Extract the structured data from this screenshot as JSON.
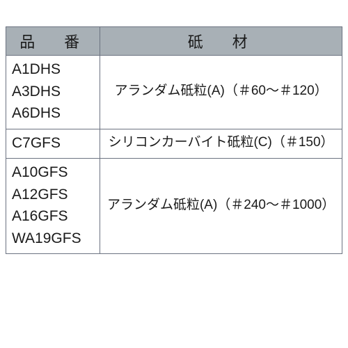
{
  "table": {
    "header_bg": "#a8b0b6",
    "border_color": "#6b7280",
    "text_color": "#1a1a1a",
    "columns": [
      {
        "key": "code",
        "label": "品　番",
        "width_pct": 28
      },
      {
        "key": "material",
        "label": "砥　材",
        "width_pct": 72
      }
    ],
    "rows": [
      {
        "codes": [
          "A1DHS",
          "A3DHS",
          "A6DHS"
        ],
        "material": "アランダム砥粒(A)（＃60～＃120）"
      },
      {
        "codes": [
          "C7GFS"
        ],
        "material": "シリコンカーバイト砥粒(C)（＃150）"
      },
      {
        "codes": [
          "A10GFS",
          "A12GFS",
          "A16GFS",
          "WA19GFS"
        ],
        "material": "アランダム砥粒(A)（＃240～＃1000）"
      }
    ]
  }
}
